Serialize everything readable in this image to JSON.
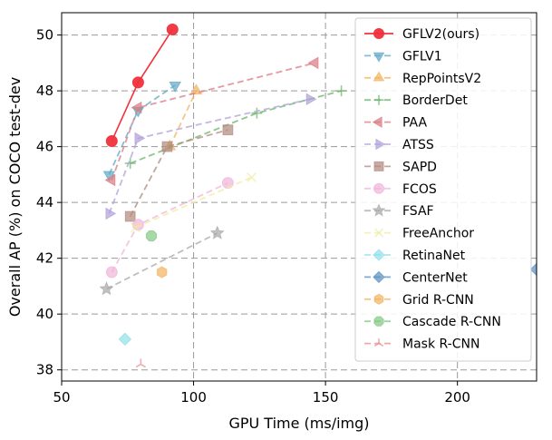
{
  "chart_data": {
    "type": "line",
    "title": "",
    "xlabel": "GPU Time (ms/img)",
    "ylabel": "Overall AP (%) on COCO test-dev",
    "xlim": [
      50,
      230
    ],
    "ylim": [
      37.6,
      50.8
    ],
    "xticks": [
      50,
      100,
      150,
      200
    ],
    "yticks": [
      38,
      40,
      42,
      44,
      46,
      48,
      50
    ],
    "grid": true,
    "legend_position": "top-right",
    "series": [
      {
        "name": "GFLV2(ours)",
        "color": "#f0323c",
        "marker": "circle",
        "dashed": false,
        "alpha": 1.0,
        "x": [
          69,
          79,
          92
        ],
        "y": [
          46.2,
          48.3,
          50.2
        ]
      },
      {
        "name": "GFLV1",
        "color": "#5ea8c8",
        "marker": "triangle-down",
        "dashed": true,
        "alpha": 0.75,
        "x": [
          68,
          79,
          93
        ],
        "y": [
          45.0,
          47.3,
          48.2
        ]
      },
      {
        "name": "RepPointsV2",
        "color": "#f2b35e",
        "marker": "triangle-up",
        "dashed": true,
        "alpha": 0.75,
        "x": [
          91,
          101
        ],
        "y": [
          46.0,
          48.0
        ]
      },
      {
        "name": "BorderDet",
        "color": "#66b466",
        "marker": "plus",
        "dashed": true,
        "alpha": 0.75,
        "x": [
          76,
          124,
          156
        ],
        "y": [
          45.4,
          47.2,
          48.0
        ]
      },
      {
        "name": "PAA",
        "color": "#d97a82",
        "marker": "triangle-left",
        "dashed": true,
        "alpha": 0.75,
        "x": [
          69,
          79,
          146
        ],
        "y": [
          44.8,
          47.4,
          49.0
        ]
      },
      {
        "name": "ATSS",
        "color": "#b0a0d8",
        "marker": "triangle-right",
        "dashed": true,
        "alpha": 0.75,
        "x": [
          68,
          79,
          144
        ],
        "y": [
          43.6,
          46.3,
          47.7
        ]
      },
      {
        "name": "SAPD",
        "color": "#b0897d",
        "marker": "square",
        "dashed": true,
        "alpha": 0.75,
        "x": [
          76,
          90,
          113
        ],
        "y": [
          43.5,
          46.0,
          46.6
        ]
      },
      {
        "name": "FCOS",
        "color": "#f0b4d8",
        "marker": "circle",
        "dashed": true,
        "alpha": 0.75,
        "x": [
          69,
          79,
          113
        ],
        "y": [
          41.5,
          43.2,
          44.7
        ]
      },
      {
        "name": "FSAF",
        "color": "#a8a8a8",
        "marker": "star",
        "dashed": true,
        "alpha": 0.75,
        "x": [
          67,
          109
        ],
        "y": [
          40.9,
          42.9
        ]
      },
      {
        "name": "FreeAnchor",
        "color": "#f0eca0",
        "marker": "x",
        "dashed": true,
        "alpha": 0.75,
        "x": [
          78,
          122
        ],
        "y": [
          43.1,
          44.9
        ]
      },
      {
        "name": "RetinaNet",
        "color": "#8fdfe8",
        "marker": "diamond",
        "dashed": true,
        "alpha": 0.75,
        "x": [
          74
        ],
        "y": [
          39.1
        ]
      },
      {
        "name": "CenterNet",
        "color": "#5b8fbf",
        "marker": "diamond",
        "dashed": true,
        "alpha": 0.75,
        "x": [
          230
        ],
        "y": [
          41.6
        ]
      },
      {
        "name": "Grid R-CNN",
        "color": "#f2b35e",
        "marker": "hexagon",
        "dashed": true,
        "alpha": 0.75,
        "x": [
          88
        ],
        "y": [
          41.5
        ]
      },
      {
        "name": "Cascade R-CNN",
        "color": "#82c882",
        "marker": "octagon",
        "dashed": true,
        "alpha": 0.75,
        "x": [
          84
        ],
        "y": [
          42.8
        ]
      },
      {
        "name": "Mask R-CNN",
        "color": "#e88a8e",
        "marker": "tri-down",
        "dashed": true,
        "alpha": 0.75,
        "x": [
          80
        ],
        "y": [
          38.2
        ]
      }
    ]
  }
}
